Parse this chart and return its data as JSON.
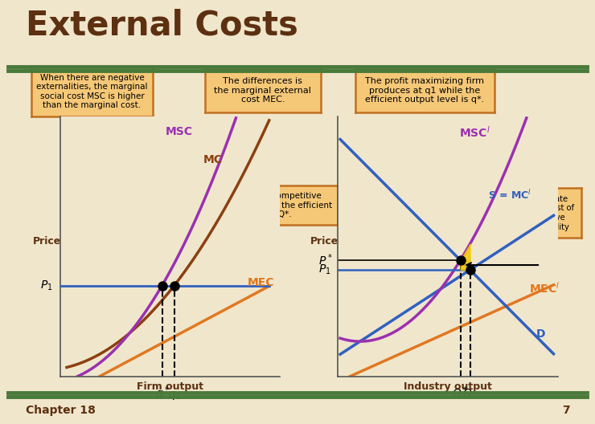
{
  "title": "External Costs",
  "bg_color": "#f0e6cc",
  "title_color": "#5c3010",
  "title_fontsize": 30,
  "green_bar_color": "#4a7a3a",
  "chapter_text": "Chapter 18",
  "page_num": "7",
  "box1_text": "When there are negative\nexternalities, the marginal\nsocial cost MSC is higher\nthan the marginal cost.",
  "box2_text": "The differences is\nthe marginal external\ncost MEC.",
  "box3_text": "The profit maximizing firm\nproduces at q1 while the\nefficient output level is q*.",
  "box4_text": "The industry competitive\noutput is Q₁ while the efficient\nlevel is Q*.",
  "box5_text": "Aggregate\nsocial cost of\nnegative\nexternality",
  "left_ylabel": "Price",
  "left_xlabel": "Firm output",
  "right_ylabel": "Price",
  "right_xlabel": "Industry output",
  "MSC_color": "#9b30b0",
  "MC_color": "#8b4010",
  "MEC_color": "#e07820",
  "P1_line_color": "#3060c0",
  "S_MC_color": "#3060c0",
  "MSC_ind_color": "#9b30b0",
  "D_color": "#3060c0",
  "dot_color": "#000000",
  "dashed_color": "#000000",
  "arrow_color": "#d4a000",
  "fill_color": "#f0c800",
  "box_face": "#f5c878",
  "box_edge": "#c07020"
}
